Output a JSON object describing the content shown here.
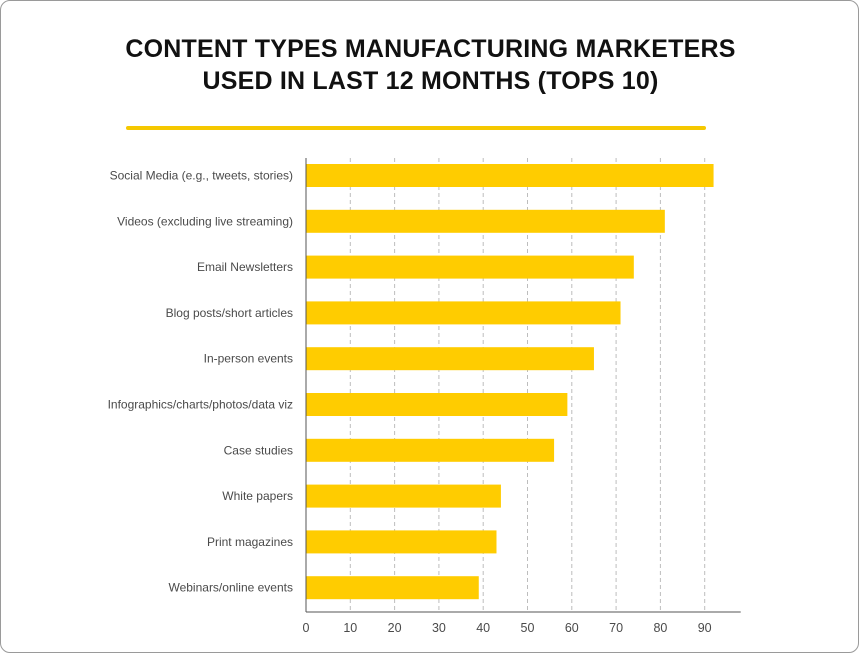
{
  "chart_data": {
    "type": "bar",
    "orientation": "horizontal",
    "title_lines": [
      "CONTENT TYPES MANUFACTURING MARKETERS",
      "USED IN LAST 12 MONTHS (TOPS 10)"
    ],
    "categories": [
      "Social Media (e.g., tweets, stories)",
      "Videos (excluding live streaming)",
      "Email Newsletters",
      "Blog posts/short articles",
      "In-person events",
      "Infographics/charts/photos/data viz",
      "Case studies",
      "White papers",
      "Print magazines",
      "Webinars/online events"
    ],
    "values": [
      92,
      81,
      74,
      71,
      65,
      59,
      56,
      44,
      43,
      39
    ],
    "xlim": [
      0,
      97
    ],
    "xticks": [
      0,
      10,
      20,
      30,
      40,
      50,
      60,
      70,
      80,
      90
    ],
    "grid": "vertical-dashed",
    "bar_color": "#ffcc00",
    "accent_color": "#f5c800"
  }
}
